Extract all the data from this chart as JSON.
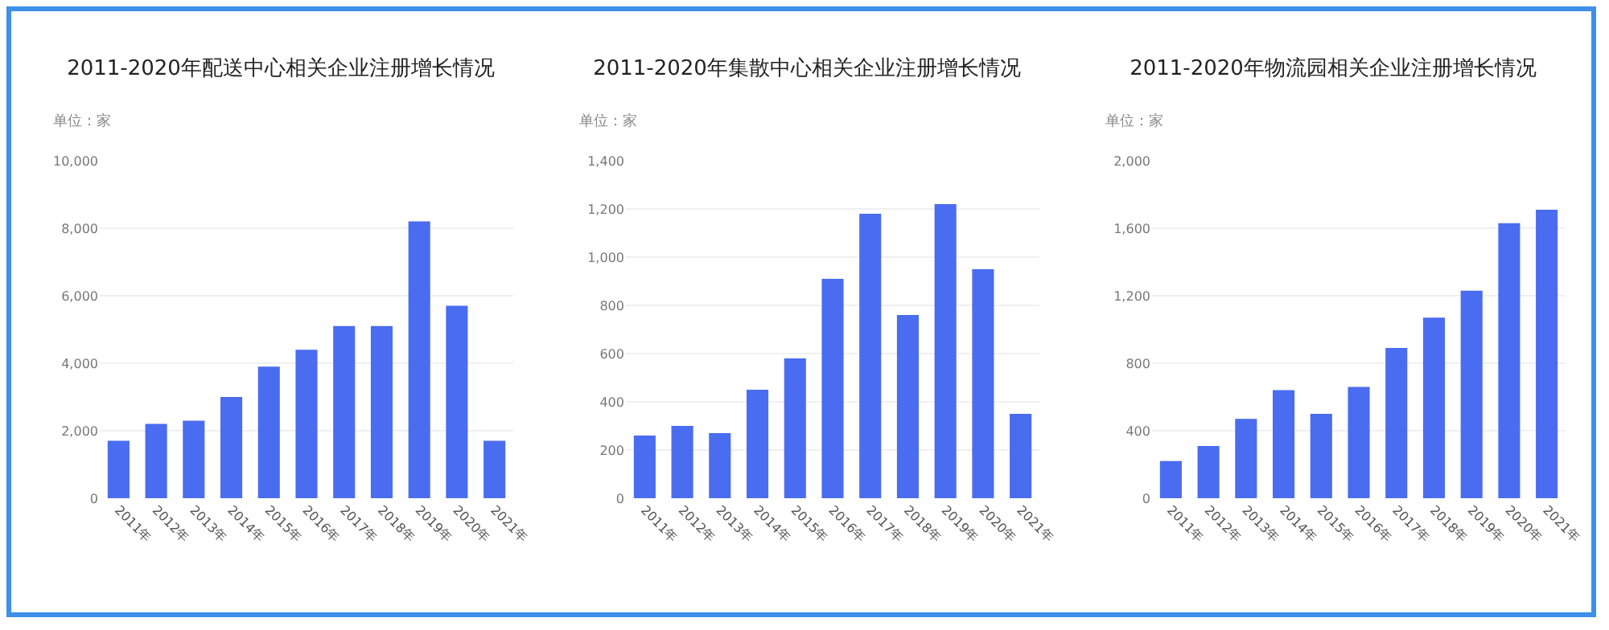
{
  "chart_data": [
    {
      "type": "bar",
      "title": "2011-2020年配送中心相关企业注册增长情况",
      "ylabel": "单位：家",
      "categories": [
        "2011年",
        "2012年",
        "2013年",
        "2014年",
        "2015年",
        "2016年",
        "2017年",
        "2018年",
        "2019年",
        "2020年",
        "2021年"
      ],
      "series": [
        {
          "color": "#4a6cf0",
          "values": [
            1700,
            2200,
            2300,
            3000,
            3900,
            4400,
            5100,
            5100,
            8200,
            5700,
            1700
          ]
        }
      ],
      "ylim": [
        0,
        10000
      ],
      "yticks": [
        0,
        {
          "value": 2000,
          "label": "2,000"
        },
        {
          "value": 4000,
          "label": "4,000"
        },
        {
          "value": 6000,
          "label": "6,000"
        },
        {
          "value": 8000,
          "label": "8,000"
        },
        {
          "value": 10000,
          "label": "10,000"
        }
      ],
      "grid": "y"
    },
    {
      "type": "bar",
      "title": "2011-2020年集散中心相关企业注册增长情况",
      "ylabel": "单位：家",
      "categories": [
        "2011年",
        "2012年",
        "2013年",
        "2014年",
        "2015年",
        "2016年",
        "2017年",
        "2018年",
        "2019年",
        "2020年",
        "2021年"
      ],
      "series": [
        {
          "color": "#4a6cf0",
          "values": [
            260,
            300,
            270,
            450,
            580,
            910,
            1180,
            760,
            1220,
            950,
            350
          ]
        }
      ],
      "ylim": [
        0,
        1400
      ],
      "yticks": [
        0,
        200,
        400,
        600,
        800,
        {
          "value": 1000,
          "label": "1,000"
        },
        {
          "value": 1200,
          "label": "1,200"
        },
        {
          "value": 1400,
          "label": "1,400"
        }
      ],
      "grid": "y"
    },
    {
      "type": "bar",
      "title": "2011-2020年物流园相关企业注册增长情况",
      "ylabel": "单位：家",
      "categories": [
        "2011年",
        "2012年",
        "2013年",
        "2014年",
        "2015年",
        "2016年",
        "2017年",
        "2018年",
        "2019年",
        "2020年",
        "2021年"
      ],
      "series": [
        {
          "color": "#4a6cf0",
          "values": [
            220,
            310,
            470,
            640,
            500,
            660,
            890,
            1070,
            1230,
            1630,
            1710
          ]
        }
      ],
      "ylim": [
        0,
        2000
      ],
      "yticks": [
        0,
        400,
        800,
        {
          "value": 1200,
          "label": "1,200"
        },
        {
          "value": 1600,
          "label": "1,600"
        },
        {
          "value": 2000,
          "label": "2,000"
        }
      ],
      "grid": "y"
    }
  ]
}
